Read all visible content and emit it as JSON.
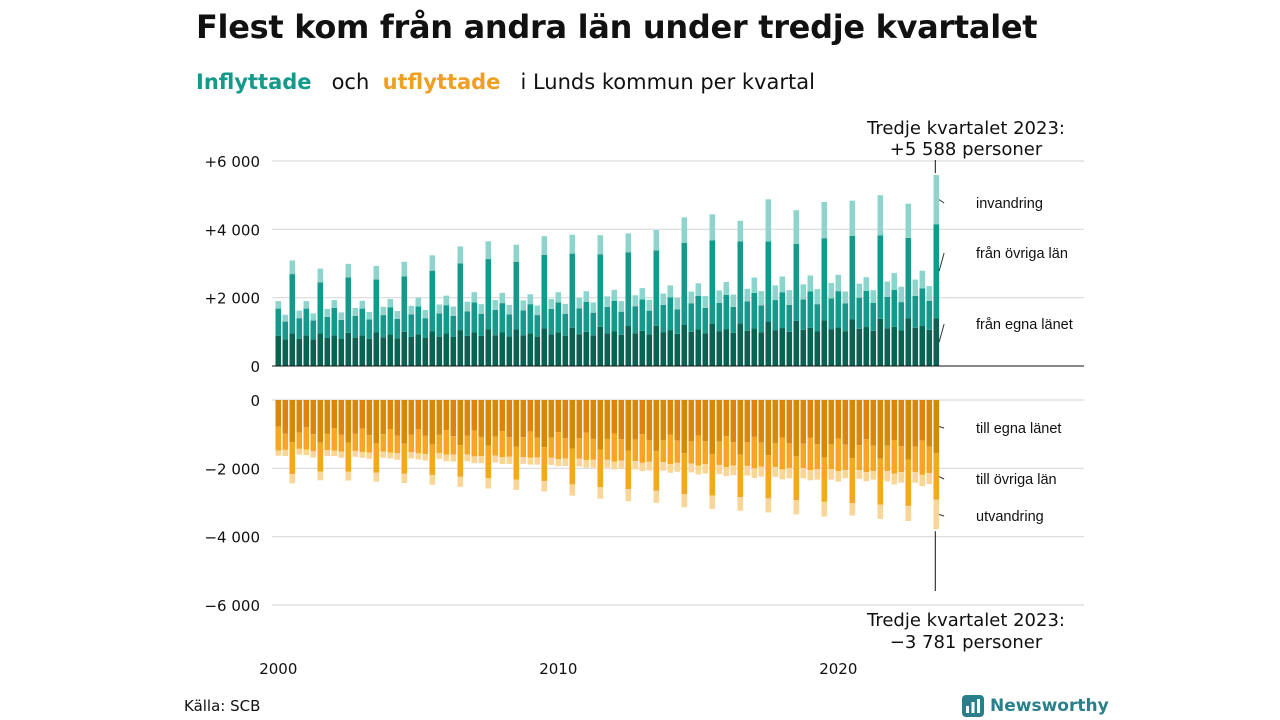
{
  "title": "Flest kom från andra län under tredje kvartalet",
  "subtitle": {
    "in_word": "Inflyttade",
    "mid": "och",
    "out_word": "utflyttade",
    "rest": "i Lunds kommun per kvartal"
  },
  "source": "Källa: SCB",
  "logo": "Newsworthy",
  "colors": {
    "in_own": "#0b6152",
    "in_other": "#14998a",
    "in_immig": "#8dd5cc",
    "out_own": "#d9870c",
    "out_other": "#f6a623",
    "out_emig": "#f9d596",
    "grid": "#d9d9d9"
  },
  "chart_data": {
    "type": "bar",
    "stacked": true,
    "x_start": "2000-Q1",
    "x_end": "2023-Q3",
    "x_ticks": [
      "2000",
      "2010",
      "2020"
    ],
    "y_ticks_top": [
      "+6 000",
      "+4 000",
      "+2 000",
      "0"
    ],
    "y_ticks_bottom": [
      "0",
      "−2 000",
      "−4 000",
      "−6 000"
    ],
    "ylim_top": [
      0,
      6000
    ],
    "ylim_bottom": [
      -6000,
      0
    ],
    "grid": true,
    "series_labels": {
      "in_immig": "invandring",
      "in_other": "från övriga län",
      "in_own": "från egna länet",
      "out_own": "till egna länet",
      "out_other": "till övriga län",
      "out_emig": "utvandring"
    },
    "annotation_top": {
      "line1": "Tredje kvartalet 2023:",
      "line2": "+5 588 personer"
    },
    "annotation_bottom": {
      "line1": "Tredje kvartalet 2023:",
      "line2": "−3 781 personer"
    },
    "quarters": [
      {
        "q": "2000-Q1",
        "in": [
          880,
          800,
          220
        ],
        "out": [
          -780,
          -700,
          -150
        ]
      },
      {
        "q": "2000-Q2",
        "in": [
          780,
          520,
          200
        ],
        "out": [
          -990,
          -470,
          -180
        ]
      },
      {
        "q": "2000-Q3",
        "in": [
          950,
          1740,
          400
        ],
        "out": [
          -1230,
          -940,
          -270
        ]
      },
      {
        "q": "2000-Q4",
        "in": [
          800,
          600,
          220
        ],
        "out": [
          -950,
          -480,
          -170
        ]
      },
      {
        "q": "2001-Q1",
        "in": [
          900,
          780,
          220
        ],
        "out": [
          -800,
          -650,
          -160
        ]
      },
      {
        "q": "2001-Q2",
        "in": [
          780,
          550,
          210
        ],
        "out": [
          -1000,
          -500,
          -180
        ]
      },
      {
        "q": "2001-Q3",
        "in": [
          950,
          1500,
          400
        ],
        "out": [
          -1250,
          -850,
          -250
        ]
      },
      {
        "q": "2001-Q4",
        "in": [
          820,
          620,
          230
        ],
        "out": [
          -980,
          -490,
          -170
        ]
      },
      {
        "q": "2002-Q1",
        "in": [
          900,
          800,
          230
        ],
        "out": [
          -820,
          -660,
          -160
        ]
      },
      {
        "q": "2002-Q2",
        "in": [
          790,
          560,
          220
        ],
        "out": [
          -1010,
          -500,
          -180
        ]
      },
      {
        "q": "2002-Q3",
        "in": [
          970,
          1620,
          400
        ],
        "out": [
          -1250,
          -850,
          -260
        ]
      },
      {
        "q": "2002-Q4",
        "in": [
          830,
          640,
          230
        ],
        "out": [
          -990,
          -500,
          -170
        ]
      },
      {
        "q": "2003-Q1",
        "in": [
          900,
          780,
          230
        ],
        "out": [
          -840,
          -680,
          -170
        ]
      },
      {
        "q": "2003-Q2",
        "in": [
          800,
          560,
          220
        ],
        "out": [
          -1030,
          -510,
          -180
        ]
      },
      {
        "q": "2003-Q3",
        "in": [
          980,
          1550,
          400
        ],
        "out": [
          -1270,
          -860,
          -260
        ]
      },
      {
        "q": "2003-Q4",
        "in": [
          840,
          650,
          240
        ],
        "out": [
          -1000,
          -510,
          -180
        ]
      },
      {
        "q": "2004-Q1",
        "in": [
          920,
          800,
          240
        ],
        "out": [
          -850,
          -690,
          -170
        ]
      },
      {
        "q": "2004-Q2",
        "in": [
          810,
          570,
          230
        ],
        "out": [
          -1040,
          -520,
          -190
        ]
      },
      {
        "q": "2004-Q3",
        "in": [
          1000,
          1620,
          430
        ],
        "out": [
          -1280,
          -880,
          -270
        ]
      },
      {
        "q": "2004-Q4",
        "in": [
          850,
          660,
          250
        ],
        "out": [
          -1010,
          -520,
          -180
        ]
      },
      {
        "q": "2005-Q1",
        "in": [
          930,
          810,
          260
        ],
        "out": [
          -860,
          -700,
          -180
        ]
      },
      {
        "q": "2005-Q2",
        "in": [
          820,
          580,
          240
        ],
        "out": [
          -1050,
          -530,
          -190
        ]
      },
      {
        "q": "2005-Q3",
        "in": [
          1010,
          1780,
          450
        ],
        "out": [
          -1300,
          -900,
          -280
        ]
      },
      {
        "q": "2005-Q4",
        "in": [
          860,
          680,
          260
        ],
        "out": [
          -1020,
          -530,
          -180
        ]
      },
      {
        "q": "2006-Q1",
        "in": [
          950,
          830,
          280
        ],
        "out": [
          -880,
          -720,
          -190
        ]
      },
      {
        "q": "2006-Q2",
        "in": [
          850,
          620,
          270
        ],
        "out": [
          -1060,
          -540,
          -200
        ]
      },
      {
        "q": "2006-Q3",
        "in": [
          1050,
          1950,
          500
        ],
        "out": [
          -1320,
          -930,
          -290
        ]
      },
      {
        "q": "2006-Q4",
        "in": [
          880,
          720,
          280
        ],
        "out": [
          -1050,
          -550,
          -190
        ]
      },
      {
        "q": "2007-Q1",
        "in": [
          980,
          880,
          300
        ],
        "out": [
          -900,
          -750,
          -200
        ]
      },
      {
        "q": "2007-Q2",
        "in": [
          880,
          650,
          280
        ],
        "out": [
          -1080,
          -560,
          -210
        ]
      },
      {
        "q": "2007-Q3",
        "in": [
          1080,
          2050,
          520
        ],
        "out": [
          -1340,
          -950,
          -300
        ]
      },
      {
        "q": "2007-Q4",
        "in": [
          900,
          740,
          290
        ],
        "out": [
          -1070,
          -560,
          -200
        ]
      },
      {
        "q": "2008-Q1",
        "in": [
          980,
          860,
          300
        ],
        "out": [
          -910,
          -760,
          -200
        ]
      },
      {
        "q": "2008-Q2",
        "in": [
          870,
          640,
          280
        ],
        "out": [
          -1090,
          -570,
          -210
        ]
      },
      {
        "q": "2008-Q3",
        "in": [
          1070,
          1980,
          500
        ],
        "out": [
          -1360,
          -970,
          -300
        ]
      },
      {
        "q": "2008-Q4",
        "in": [
          900,
          730,
          290
        ],
        "out": [
          -1090,
          -580,
          -200
        ]
      },
      {
        "q": "2009-Q1",
        "in": [
          960,
          850,
          290
        ],
        "out": [
          -920,
          -770,
          -200
        ]
      },
      {
        "q": "2009-Q2",
        "in": [
          860,
          630,
          280
        ],
        "out": [
          -1100,
          -580,
          -210
        ]
      },
      {
        "q": "2009-Q3",
        "in": [
          1100,
          2150,
          550
        ],
        "out": [
          -1380,
          -990,
          -310
        ]
      },
      {
        "q": "2009-Q4",
        "in": [
          920,
          750,
          290
        ],
        "out": [
          -1100,
          -590,
          -210
        ]
      },
      {
        "q": "2010-Q1",
        "in": [
          990,
          870,
          300
        ],
        "out": [
          -940,
          -790,
          -210
        ]
      },
      {
        "q": "2010-Q2",
        "in": [
          880,
          650,
          290
        ],
        "out": [
          -1120,
          -590,
          -220
        ]
      },
      {
        "q": "2010-Q3",
        "in": [
          1120,
          2170,
          550
        ],
        "out": [
          -1420,
          -1050,
          -330
        ]
      },
      {
        "q": "2010-Q4",
        "in": [
          930,
          760,
          300
        ],
        "out": [
          -1120,
          -600,
          -220
        ]
      },
      {
        "q": "2011-Q1",
        "in": [
          1000,
          880,
          310
        ],
        "out": [
          -960,
          -800,
          -220
        ]
      },
      {
        "q": "2011-Q2",
        "in": [
          900,
          660,
          300
        ],
        "out": [
          -1140,
          -610,
          -230
        ]
      },
      {
        "q": "2011-Q3",
        "in": [
          1150,
          2120,
          560
        ],
        "out": [
          -1450,
          -1100,
          -340
        ]
      },
      {
        "q": "2011-Q4",
        "in": [
          950,
          780,
          310
        ],
        "out": [
          -1140,
          -610,
          -230
        ]
      },
      {
        "q": "2012-Q1",
        "in": [
          1010,
          900,
          320
        ],
        "out": [
          -980,
          -820,
          -230
        ]
      },
      {
        "q": "2012-Q2",
        "in": [
          910,
          680,
          310
        ],
        "out": [
          -1150,
          -620,
          -240
        ]
      },
      {
        "q": "2012-Q3",
        "in": [
          1170,
          2160,
          550
        ],
        "out": [
          -1480,
          -1130,
          -350
        ]
      },
      {
        "q": "2012-Q4",
        "in": [
          960,
          790,
          320
        ],
        "out": [
          -1160,
          -630,
          -240
        ]
      },
      {
        "q": "2013-Q1",
        "in": [
          1030,
          920,
          330
        ],
        "out": [
          -1000,
          -840,
          -240
        ]
      },
      {
        "q": "2013-Q2",
        "in": [
          920,
          700,
          320
        ],
        "out": [
          -1170,
          -640,
          -250
        ]
      },
      {
        "q": "2013-Q3",
        "in": [
          1180,
          2200,
          600
        ],
        "out": [
          -1500,
          -1150,
          -360
        ]
      },
      {
        "q": "2013-Q4",
        "in": [
          980,
          810,
          330
        ],
        "out": [
          -1180,
          -640,
          -250
        ]
      },
      {
        "q": "2014-Q1",
        "in": [
          1050,
          960,
          350
        ],
        "out": [
          -1020,
          -860,
          -250
        ]
      },
      {
        "q": "2014-Q2",
        "in": [
          940,
          720,
          330
        ],
        "out": [
          -1190,
          -650,
          -260
        ]
      },
      {
        "q": "2014-Q3",
        "in": [
          1200,
          2400,
          750
        ],
        "out": [
          -1560,
          -1200,
          -380
        ]
      },
      {
        "q": "2014-Q4",
        "in": [
          1000,
          830,
          350
        ],
        "out": [
          -1200,
          -660,
          -260
        ]
      },
      {
        "q": "2015-Q1",
        "in": [
          1070,
          980,
          370
        ],
        "out": [
          -1040,
          -880,
          -260
        ]
      },
      {
        "q": "2015-Q2",
        "in": [
          960,
          740,
          350
        ],
        "out": [
          -1210,
          -670,
          -270
        ]
      },
      {
        "q": "2015-Q3",
        "in": [
          1230,
          2450,
          760
        ],
        "out": [
          -1580,
          -1220,
          -390
        ]
      },
      {
        "q": "2015-Q4",
        "in": [
          1010,
          840,
          360
        ],
        "out": [
          -1220,
          -680,
          -270
        ]
      },
      {
        "q": "2016-Q1",
        "in": [
          1080,
          1000,
          380
        ],
        "out": [
          -1060,
          -900,
          -270
        ]
      },
      {
        "q": "2016-Q2",
        "in": [
          970,
          760,
          360
        ],
        "out": [
          -1230,
          -690,
          -280
        ]
      },
      {
        "q": "2016-Q3",
        "in": [
          1250,
          2400,
          600
        ],
        "out": [
          -1600,
          -1240,
          -400
        ]
      },
      {
        "q": "2016-Q4",
        "in": [
          1030,
          860,
          370
        ],
        "out": [
          -1240,
          -690,
          -280
        ]
      },
      {
        "q": "2017-Q1",
        "in": [
          1100,
          1040,
          450
        ],
        "out": [
          -1080,
          -920,
          -280
        ]
      },
      {
        "q": "2017-Q2",
        "in": [
          990,
          780,
          420
        ],
        "out": [
          -1250,
          -700,
          -290
        ]
      },
      {
        "q": "2017-Q3",
        "in": [
          1300,
          2350,
          1230
        ],
        "out": [
          -1620,
          -1260,
          -410
        ]
      },
      {
        "q": "2017-Q4",
        "in": [
          1050,
          880,
          430
        ],
        "out": [
          -1260,
          -700,
          -290
        ]
      },
      {
        "q": "2018-Q1",
        "in": [
          1110,
          1050,
          460
        ],
        "out": [
          -1100,
          -930,
          -290
        ]
      },
      {
        "q": "2018-Q2",
        "in": [
          1000,
          790,
          430
        ],
        "out": [
          -1270,
          -720,
          -300
        ]
      },
      {
        "q": "2018-Q3",
        "in": [
          1320,
          2250,
          990
        ],
        "out": [
          -1650,
          -1280,
          -420
        ]
      },
      {
        "q": "2018-Q4",
        "in": [
          1060,
          890,
          440
        ],
        "out": [
          -1280,
          -710,
          -300
        ]
      },
      {
        "q": "2019-Q1",
        "in": [
          1120,
          1060,
          470
        ],
        "out": [
          -1110,
          -940,
          -300
        ]
      },
      {
        "q": "2019-Q2",
        "in": [
          1010,
          800,
          440
        ],
        "out": [
          -1290,
          -730,
          -310
        ]
      },
      {
        "q": "2019-Q3",
        "in": [
          1340,
          2400,
          1060
        ],
        "out": [
          -1680,
          -1300,
          -430
        ]
      },
      {
        "q": "2019-Q4",
        "in": [
          1080,
          900,
          450
        ],
        "out": [
          -1300,
          -720,
          -310
        ]
      },
      {
        "q": "2020-Q1",
        "in": [
          1130,
          1060,
          480
        ],
        "out": [
          -1130,
          -950,
          -310
        ]
      },
      {
        "q": "2020-Q2",
        "in": [
          1020,
          810,
          350
        ],
        "out": [
          -1310,
          -740,
          -240
        ]
      },
      {
        "q": "2020-Q3",
        "in": [
          1360,
          2450,
          1030
        ],
        "out": [
          -1700,
          -1320,
          -360
        ]
      },
      {
        "q": "2020-Q4",
        "in": [
          1090,
          910,
          410
        ],
        "out": [
          -1320,
          -730,
          -260
        ]
      },
      {
        "q": "2021-Q1",
        "in": [
          1140,
          1060,
          400
        ],
        "out": [
          -1150,
          -960,
          -270
        ]
      },
      {
        "q": "2021-Q2",
        "in": [
          1030,
          820,
          370
        ],
        "out": [
          -1330,
          -750,
          -250
        ]
      },
      {
        "q": "2021-Q3",
        "in": [
          1380,
          2440,
          1180
        ],
        "out": [
          -1720,
          -1340,
          -420
        ]
      },
      {
        "q": "2021-Q4",
        "in": [
          1100,
          920,
          450
        ],
        "out": [
          -1340,
          -740,
          -300
        ]
      },
      {
        "q": "2022-Q1",
        "in": [
          1150,
          1080,
          490
        ],
        "out": [
          -1170,
          -980,
          -320
        ]
      },
      {
        "q": "2022-Q2",
        "in": [
          1040,
          830,
          450
        ],
        "out": [
          -1350,
          -760,
          -310
        ]
      },
      {
        "q": "2022-Q3",
        "in": [
          1400,
          2350,
          1000
        ],
        "out": [
          -1740,
          -1360,
          -440
        ]
      },
      {
        "q": "2022-Q4",
        "in": [
          1120,
          930,
          480
        ],
        "out": [
          -1360,
          -750,
          -310
        ]
      },
      {
        "q": "2023-Q1",
        "in": [
          1170,
          1100,
          520
        ],
        "out": [
          -1190,
          -1000,
          -330
        ]
      },
      {
        "q": "2023-Q2",
        "in": [
          1060,
          850,
          430
        ],
        "out": [
          -1370,
          -770,
          -320
        ]
      },
      {
        "q": "2023-Q3",
        "in": [
          1400,
          2750,
          1438
        ],
        "out": [
          -1560,
          -1360,
          -861
        ]
      }
    ]
  }
}
